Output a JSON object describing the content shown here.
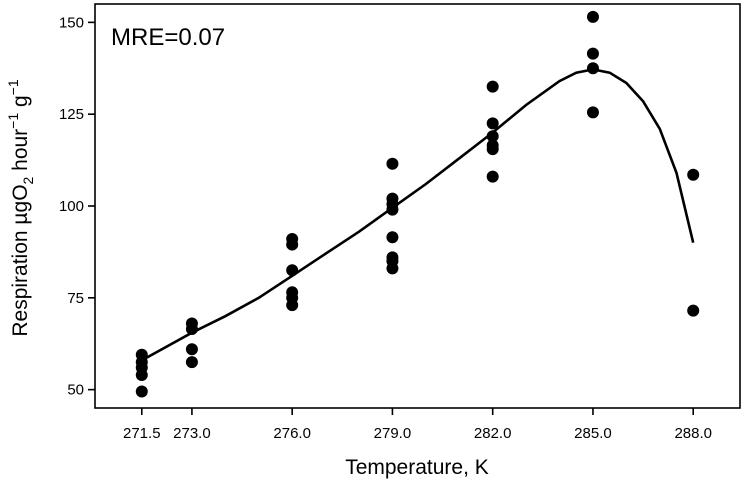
{
  "chart_data": {
    "type": "scatter",
    "title": "",
    "xlabel": "Temperature, K",
    "ylabel": {
      "main": "Respiration µgO",
      "sub": "2",
      "mid": " hour",
      "sup1": "−1",
      "tail": " g",
      "sup2": "−1"
    },
    "annotation": "MRE=0.07",
    "xlim": [
      270.1,
      289.4
    ],
    "ylim": [
      45,
      155
    ],
    "x_ticks": [
      271.5,
      273.0,
      276.0,
      279.0,
      282.0,
      285.0,
      288.0
    ],
    "x_tick_labels": [
      "271.5",
      "273.0",
      "276.0",
      "279.0",
      "282.0",
      "285.0",
      "288.0"
    ],
    "y_ticks": [
      50,
      75,
      100,
      125,
      150
    ],
    "y_tick_labels": [
      "50",
      "75",
      "100",
      "125",
      "150"
    ],
    "grid": false,
    "legend": "none",
    "series": [
      {
        "kind": "points",
        "color": "#000000",
        "points": [
          [
            271.5,
            59.5
          ],
          [
            271.5,
            57.5
          ],
          [
            271.5,
            56.0
          ],
          [
            271.5,
            54.0
          ],
          [
            271.5,
            49.5
          ],
          [
            273.0,
            68.0
          ],
          [
            273.0,
            66.5
          ],
          [
            273.0,
            61.0
          ],
          [
            273.0,
            57.5
          ],
          [
            276.0,
            91.0
          ],
          [
            276.0,
            89.5
          ],
          [
            276.0,
            82.5
          ],
          [
            276.0,
            76.5
          ],
          [
            276.0,
            75.0
          ],
          [
            276.0,
            73.0
          ],
          [
            279.0,
            111.5
          ],
          [
            279.0,
            102.0
          ],
          [
            279.0,
            100.5
          ],
          [
            279.0,
            99.0
          ],
          [
            279.0,
            91.5
          ],
          [
            279.0,
            86.0
          ],
          [
            279.0,
            85.0
          ],
          [
            279.0,
            83.0
          ],
          [
            282.0,
            132.5
          ],
          [
            282.0,
            122.5
          ],
          [
            282.0,
            119.0
          ],
          [
            282.0,
            116.5
          ],
          [
            282.0,
            115.5
          ],
          [
            282.0,
            108.0
          ],
          [
            285.0,
            151.5
          ],
          [
            285.0,
            141.5
          ],
          [
            285.0,
            137.5
          ],
          [
            285.0,
            125.5
          ],
          [
            288.0,
            108.5
          ],
          [
            288.0,
            71.5
          ]
        ]
      },
      {
        "kind": "fit-line",
        "color": "#000000",
        "points": [
          [
            271.5,
            58.0
          ],
          [
            272.0,
            60.5
          ],
          [
            273.0,
            65.5
          ],
          [
            274.0,
            70.0
          ],
          [
            275.0,
            75.0
          ],
          [
            276.0,
            81.0
          ],
          [
            277.0,
            87.0
          ],
          [
            278.0,
            93.0
          ],
          [
            279.0,
            99.5
          ],
          [
            280.0,
            106.0
          ],
          [
            281.0,
            113.0
          ],
          [
            282.0,
            120.0
          ],
          [
            283.0,
            127.5
          ],
          [
            284.0,
            134.0
          ],
          [
            284.5,
            136.3
          ],
          [
            285.0,
            137.2
          ],
          [
            285.5,
            136.3
          ],
          [
            286.0,
            133.5
          ],
          [
            286.5,
            128.5
          ],
          [
            287.0,
            121.0
          ],
          [
            287.5,
            109.0
          ],
          [
            288.0,
            90.0
          ]
        ]
      }
    ]
  }
}
